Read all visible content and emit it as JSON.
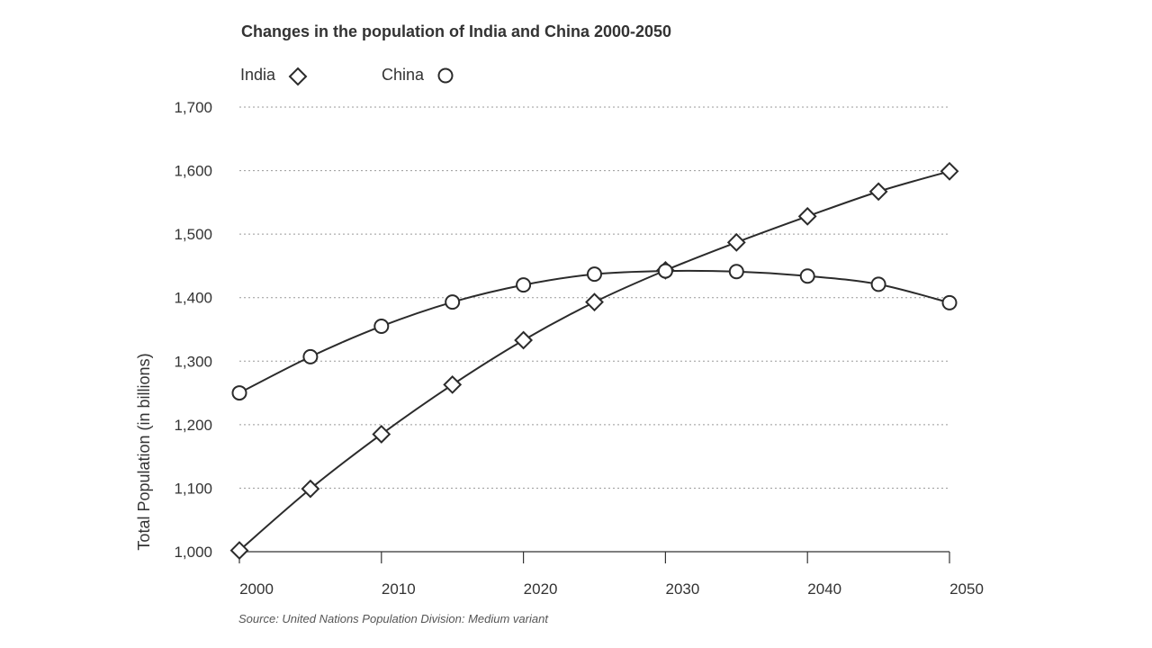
{
  "chart_data": {
    "type": "line",
    "title": "Changes in the population of India and China 2000-2050",
    "xlabel": "",
    "ylabel": "Total Population (in billions)",
    "x": [
      2000,
      2005,
      2010,
      2015,
      2020,
      2025,
      2030,
      2035,
      2040,
      2045,
      2050
    ],
    "x_tick_labels": [
      "2000",
      "2010",
      "2020",
      "2030",
      "2040",
      "2050"
    ],
    "y_tick_labels": [
      "1,000",
      "1,100",
      "1,200",
      "1,300",
      "1,400",
      "1,500",
      "1,600",
      "1,700"
    ],
    "xlim": [
      2000,
      2050
    ],
    "ylim": [
      1000,
      1700
    ],
    "grid": true,
    "legend_position": "top-left",
    "series": [
      {
        "name": "India",
        "marker": "diamond",
        "values": [
          1002,
          1099,
          1185,
          1263,
          1333,
          1393,
          1443,
          1487,
          1528,
          1567,
          1599
        ]
      },
      {
        "name": "China",
        "marker": "circle",
        "values": [
          1250,
          1307,
          1355,
          1393,
          1420,
          1437,
          1442,
          1441,
          1434,
          1421,
          1392
        ]
      }
    ],
    "source": "Source: United Nations Population Division: Medium variant"
  }
}
